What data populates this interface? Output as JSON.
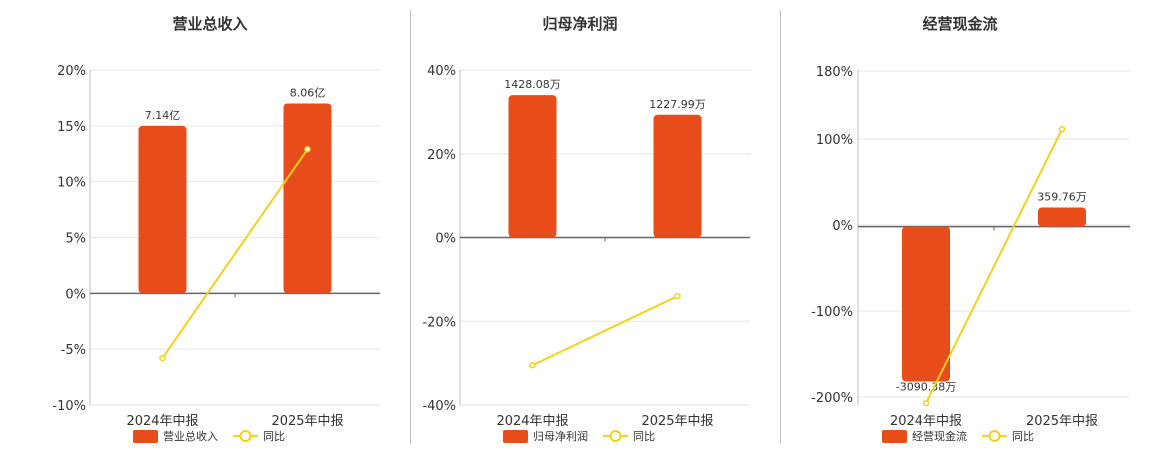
{
  "colors": {
    "bar": "#e84c1b",
    "line": "#f2d21a",
    "grid": "#e6e6e6",
    "axis": "#666666"
  },
  "chart_data": [
    {
      "type": "bar",
      "title": "营业总收入",
      "categories": [
        "2024年中报",
        "2025年中报"
      ],
      "series": [
        {
          "name": "营业总收入",
          "type": "bar",
          "values": [
            15.0,
            17.0
          ],
          "labels": [
            "7.14亿",
            "8.06亿"
          ]
        },
        {
          "name": "同比",
          "type": "line",
          "values": [
            -5.8,
            12.9
          ]
        }
      ],
      "yticks": [
        "-10%",
        "-5%",
        "0%",
        "5%",
        "10%",
        "15%",
        "20%"
      ],
      "ylim": [
        -10,
        20
      ],
      "grid": true,
      "legend": "bottom"
    },
    {
      "type": "bar",
      "title": "归母净利润",
      "categories": [
        "2024年中报",
        "2025年中报"
      ],
      "series": [
        {
          "name": "归母净利润",
          "type": "bar",
          "values": [
            34.0,
            29.3
          ],
          "labels": [
            "1428.08万",
            "1227.99万"
          ]
        },
        {
          "name": "同比",
          "type": "line",
          "values": [
            -30.5,
            -14.0
          ]
        }
      ],
      "yticks": [
        "-40%",
        "-20%",
        "0%",
        "20%",
        "40%"
      ],
      "ylim": [
        -40,
        40
      ],
      "grid": true,
      "legend": "bottom"
    },
    {
      "type": "bar",
      "title": "经营现金流",
      "categories": [
        "2024年中报",
        "2025年中报"
      ],
      "series": [
        {
          "name": "经营现金流",
          "type": "bar",
          "values": [
            -178,
            22
          ],
          "labels": [
            "-3090.38万",
            "359.76万"
          ]
        },
        {
          "name": "同比",
          "type": "line",
          "values": [
            -203,
            112
          ]
        }
      ],
      "yticks": [
        "-200%",
        "-100%",
        "0%",
        "100%",
        "180%"
      ],
      "ytick_values": [
        -200,
        -100,
        0,
        100,
        180
      ],
      "ylim": [
        -205,
        180
      ],
      "grid": true,
      "legend": "bottom"
    }
  ]
}
